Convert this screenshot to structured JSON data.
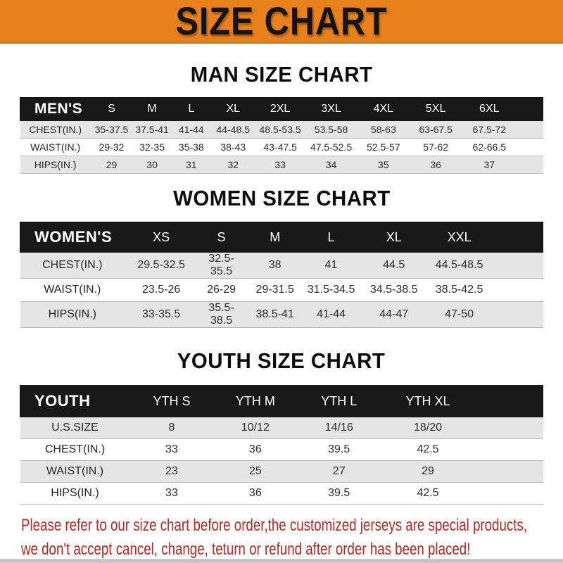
{
  "banner": {
    "title": "SIZE CHART",
    "bg_color": "#E8811C",
    "text_color": "#141414"
  },
  "sections": [
    {
      "id": "men",
      "heading": "MAN SIZE CHART",
      "header": [
        "MEN'S",
        "S",
        "M",
        "L",
        "XL",
        "2XL",
        "3XL",
        "4XL",
        "5XL",
        "6XL"
      ],
      "rows": [
        {
          "label": "CHEST(IN.)",
          "values": [
            "35-37.5",
            "37.5-41",
            "41-44",
            "44-48.5",
            "48.5-53.5",
            "53.5-58",
            "58-63",
            "63-67.5",
            "67.5-72"
          ]
        },
        {
          "label": "WAIST(IN.)",
          "values": [
            "29-32",
            "32-35",
            "35-38",
            "38-43",
            "43-47.5",
            "47.5-52.5",
            "52.5-57",
            "57-62",
            "62-66.5"
          ]
        },
        {
          "label": "HIPS(IN.)",
          "values": [
            "29",
            "30",
            "31",
            "32",
            "33",
            "34",
            "35",
            "36",
            "37"
          ]
        }
      ]
    },
    {
      "id": "women",
      "heading": "WOMEN SIZE CHART",
      "header": [
        "WOMEN'S",
        "XS",
        "S",
        "M",
        "L",
        "XL",
        "XXL"
      ],
      "rows": [
        {
          "label": "CHEST(IN.)",
          "values": [
            "29.5-32.5",
            "32.5-35.5",
            "38",
            "41",
            "44.5",
            "44.5-48.5"
          ]
        },
        {
          "label": "WAIST(IN.)",
          "values": [
            "23.5-26",
            "26-29",
            "29-31.5",
            "31.5-34.5",
            "34.5-38.5",
            "38.5-42.5"
          ]
        },
        {
          "label": "HIPS(IN.)",
          "values": [
            "33-35.5",
            "35.5-38.5",
            "38.5-41",
            "41-44",
            "44-47",
            "47-50"
          ]
        }
      ]
    },
    {
      "id": "youth",
      "heading": "YOUTH SIZE CHART",
      "header": [
        "YOUTH",
        "YTH S",
        "YTH M",
        "YTH L",
        "YTH XL"
      ],
      "rows": [
        {
          "label": "U.S.SIZE",
          "values": [
            "8",
            "10/12",
            "14/16",
            "18/20"
          ]
        },
        {
          "label": "CHEST(IN.)",
          "values": [
            "33",
            "36",
            "39.5",
            "42.5"
          ]
        },
        {
          "label": "WAIST(IN.)",
          "values": [
            "23",
            "25",
            "27",
            "29"
          ]
        },
        {
          "label": "HIPS(IN.)",
          "values": [
            "33",
            "36",
            "39.5",
            "42.5"
          ]
        }
      ]
    }
  ],
  "footnote": {
    "color": "#B02B25",
    "lines": [
      "Please refer to our size chart before order,the customized jerseys are special products,",
      "we don't accept cancel, change, teturn or refund after order has been placed!"
    ]
  }
}
